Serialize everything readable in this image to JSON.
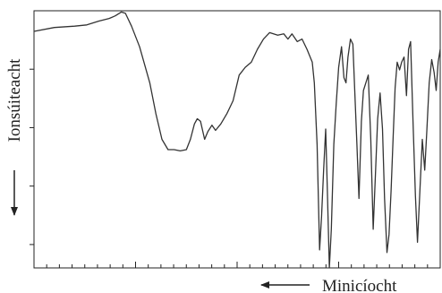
{
  "chart_data": {
    "type": "line",
    "title": "",
    "xlabel": "Minicíocht",
    "ylabel": "Ionsúiteacht",
    "x_direction": "decreasing-right-to-left",
    "y_direction": "decreasing-downward",
    "tick_labels_shown": false,
    "grid": false,
    "line_color": "#333333",
    "series": [
      {
        "values": [
          [
            0.0,
            0.08
          ],
          [
            0.05,
            0.065
          ],
          [
            0.1,
            0.06
          ],
          [
            0.13,
            0.055
          ],
          [
            0.16,
            0.04
          ],
          [
            0.185,
            0.03
          ],
          [
            0.2,
            0.02
          ],
          [
            0.215,
            0.005
          ],
          [
            0.225,
            0.01
          ],
          [
            0.24,
            0.06
          ],
          [
            0.26,
            0.14
          ],
          [
            0.285,
            0.28
          ],
          [
            0.3,
            0.4
          ],
          [
            0.315,
            0.5
          ],
          [
            0.33,
            0.54
          ],
          [
            0.345,
            0.54
          ],
          [
            0.36,
            0.545
          ],
          [
            0.375,
            0.54
          ],
          [
            0.385,
            0.5
          ],
          [
            0.395,
            0.44
          ],
          [
            0.402,
            0.42
          ],
          [
            0.41,
            0.43
          ],
          [
            0.42,
            0.5
          ],
          [
            0.428,
            0.47
          ],
          [
            0.438,
            0.445
          ],
          [
            0.447,
            0.465
          ],
          [
            0.46,
            0.44
          ],
          [
            0.475,
            0.4
          ],
          [
            0.49,
            0.35
          ],
          [
            0.505,
            0.25
          ],
          [
            0.52,
            0.22
          ],
          [
            0.535,
            0.2
          ],
          [
            0.55,
            0.15
          ],
          [
            0.565,
            0.11
          ],
          [
            0.58,
            0.085
          ],
          [
            0.6,
            0.095
          ],
          [
            0.615,
            0.09
          ],
          [
            0.625,
            0.11
          ],
          [
            0.635,
            0.09
          ],
          [
            0.648,
            0.12
          ],
          [
            0.66,
            0.11
          ],
          [
            0.672,
            0.15
          ],
          [
            0.685,
            0.2
          ],
          [
            0.69,
            0.28
          ],
          [
            0.697,
            0.52
          ],
          [
            0.703,
            0.93
          ],
          [
            0.708,
            0.8
          ],
          [
            0.713,
            0.62
          ],
          [
            0.718,
            0.46
          ],
          [
            0.722,
            0.69
          ],
          [
            0.727,
            1.0
          ],
          [
            0.732,
            0.85
          ],
          [
            0.738,
            0.52
          ],
          [
            0.744,
            0.36
          ],
          [
            0.75,
            0.22
          ],
          [
            0.757,
            0.14
          ],
          [
            0.763,
            0.26
          ],
          [
            0.768,
            0.28
          ],
          [
            0.773,
            0.18
          ],
          [
            0.779,
            0.11
          ],
          [
            0.785,
            0.13
          ],
          [
            0.79,
            0.33
          ],
          [
            0.795,
            0.52
          ],
          [
            0.8,
            0.73
          ],
          [
            0.806,
            0.43
          ],
          [
            0.811,
            0.31
          ],
          [
            0.817,
            0.28
          ],
          [
            0.823,
            0.25
          ],
          [
            0.829,
            0.5
          ],
          [
            0.835,
            0.85
          ],
          [
            0.841,
            0.62
          ],
          [
            0.846,
            0.42
          ],
          [
            0.852,
            0.32
          ],
          [
            0.858,
            0.46
          ],
          [
            0.863,
            0.73
          ],
          [
            0.869,
            0.94
          ],
          [
            0.874,
            0.87
          ],
          [
            0.879,
            0.7
          ],
          [
            0.884,
            0.5
          ],
          [
            0.889,
            0.3
          ],
          [
            0.894,
            0.2
          ],
          [
            0.9,
            0.23
          ],
          [
            0.905,
            0.2
          ],
          [
            0.911,
            0.18
          ],
          [
            0.917,
            0.33
          ],
          [
            0.922,
            0.15
          ],
          [
            0.927,
            0.12
          ],
          [
            0.933,
            0.43
          ],
          [
            0.939,
            0.72
          ],
          [
            0.944,
            0.9
          ],
          [
            0.95,
            0.7
          ],
          [
            0.956,
            0.5
          ],
          [
            0.962,
            0.62
          ],
          [
            0.967,
            0.47
          ],
          [
            0.973,
            0.28
          ],
          [
            0.979,
            0.19
          ],
          [
            0.985,
            0.24
          ],
          [
            0.99,
            0.31
          ],
          [
            0.995,
            0.2
          ],
          [
            1.0,
            0.15
          ]
        ]
      }
    ]
  }
}
